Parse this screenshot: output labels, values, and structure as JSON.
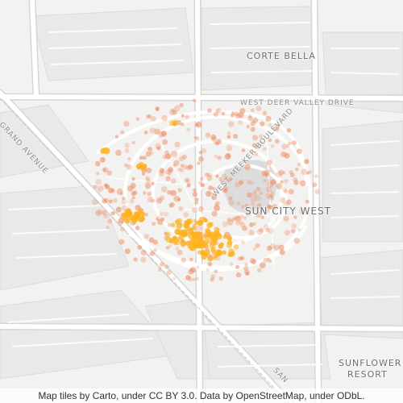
{
  "map": {
    "labels": {
      "corte_bella": "CORTE BELLA",
      "sun_city_west": "SUN CITY WEST",
      "sunflower_resort_line1": "SUNFLOWER",
      "sunflower_resort_line2": "RESORT"
    },
    "streets": {
      "deer_valley": "WEST DEER VALLEY DRIVE",
      "meeker": "WEST MEEKER BOULEVARD",
      "grand": "GRAND AVENUE",
      "grand_partial": "SAN"
    },
    "colors": {
      "background": "#f2f2f0",
      "road": "#ffffff",
      "road_casing": "#dcdcdc",
      "block": "#e6e6e4",
      "park": "#dedede",
      "heat_low": "#f08a5d",
      "heat_high": "#ffb21e"
    }
  },
  "attribution": "Map tiles by Carto, under CC BY 3.0. Data by OpenStreetMap, under ODbL."
}
